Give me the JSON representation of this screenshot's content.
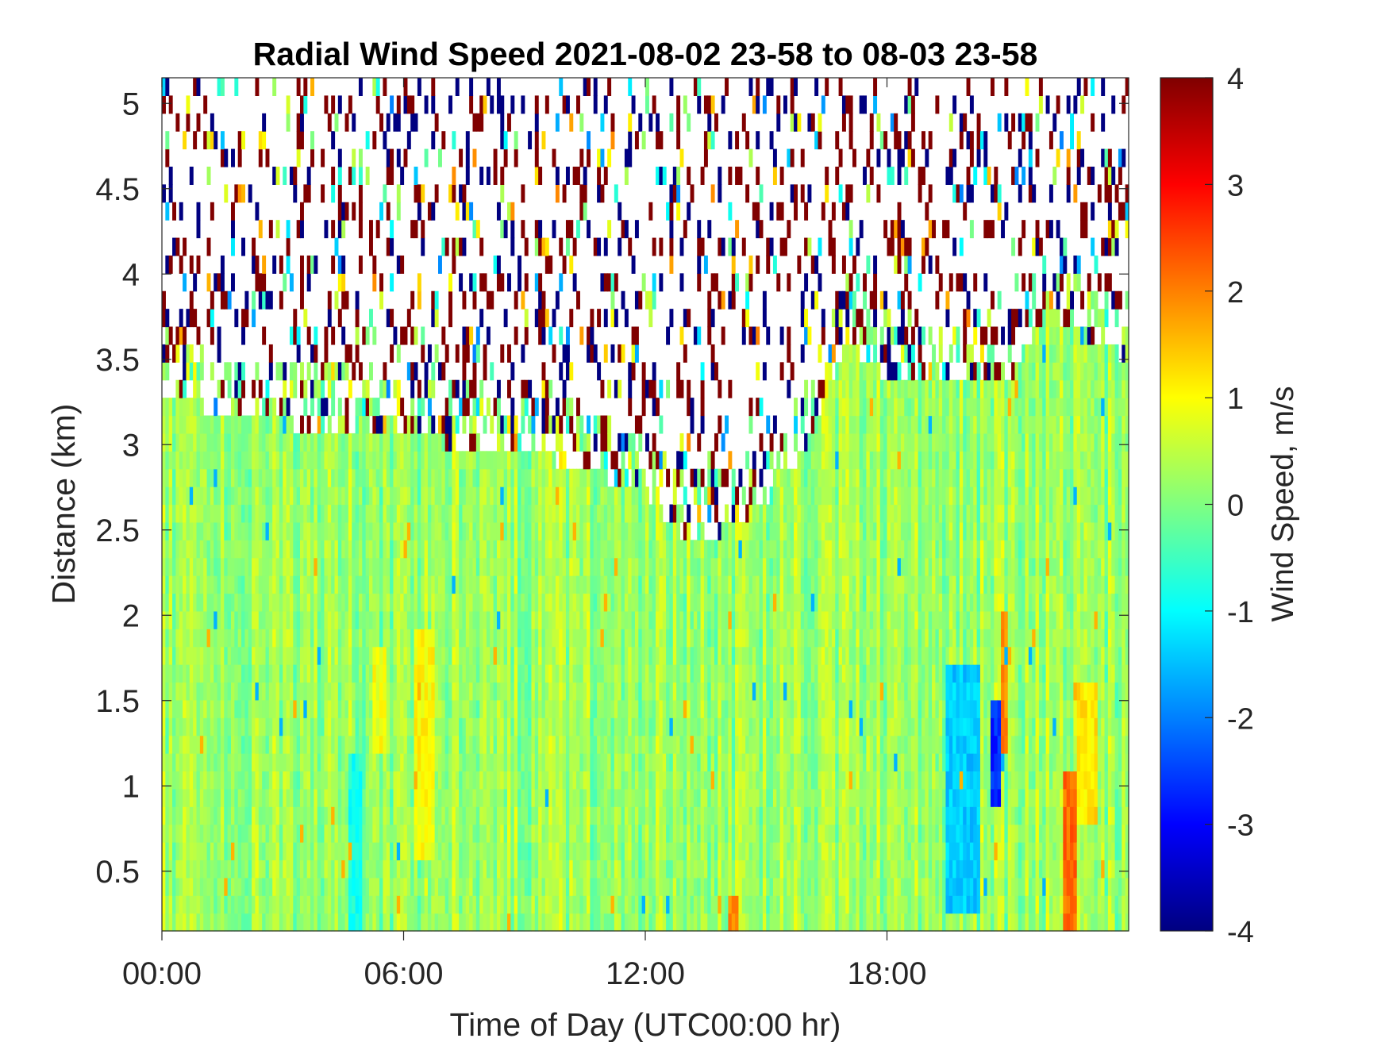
{
  "figure": {
    "background": "#ffffff",
    "axis_color": "#262626"
  },
  "chart_data": {
    "type": "heatmap",
    "title": "Radial Wind Speed 2021-08-02 23-58 to 08-03 23-58",
    "xlabel": "Time of Day (UTC00:00 hr)",
    "ylabel": "Distance (km)",
    "x_ticks": [
      {
        "value": 0,
        "label": "00:00"
      },
      {
        "value": 6,
        "label": "06:00"
      },
      {
        "value": 12,
        "label": "12:00"
      },
      {
        "value": 18,
        "label": "18:00"
      }
    ],
    "y_ticks": [
      {
        "value": 0.5,
        "label": "0.5"
      },
      {
        "value": 1,
        "label": "1"
      },
      {
        "value": 1.5,
        "label": "1.5"
      },
      {
        "value": 2,
        "label": "2"
      },
      {
        "value": 2.5,
        "label": "2.5"
      },
      {
        "value": 3,
        "label": "3"
      },
      {
        "value": 3.5,
        "label": "3.5"
      },
      {
        "value": 4,
        "label": "4"
      },
      {
        "value": 4.5,
        "label": "4.5"
      },
      {
        "value": 5,
        "label": "5"
      }
    ],
    "xlim": [
      0,
      24
    ],
    "ylim": [
      0.15,
      5.15
    ],
    "colorbar": {
      "label": "Wind Speed, m/s",
      "colormap": "jet",
      "clim": [
        -4,
        4
      ],
      "ticks": [
        {
          "value": 4,
          "label": "4"
        },
        {
          "value": 3,
          "label": "3"
        },
        {
          "value": 2,
          "label": "2"
        },
        {
          "value": 1,
          "label": "1"
        },
        {
          "value": 0,
          "label": "0"
        },
        {
          "value": -1,
          "label": "-1"
        },
        {
          "value": -2,
          "label": "-2"
        },
        {
          "value": -3,
          "label": "-3"
        },
        {
          "value": -4,
          "label": "-4"
        }
      ]
    },
    "grid": false,
    "field_summary": {
      "typical_value_range_low_altitude": [
        -1,
        1
      ],
      "dominant_value": 0.2,
      "noise_values": [
        -4,
        4
      ],
      "signal_top_km": [
        {
          "time": 0,
          "km": 3.3
        },
        {
          "time": 2,
          "km": 3.15
        },
        {
          "time": 6,
          "km": 3.05
        },
        {
          "time": 10,
          "km": 2.9
        },
        {
          "time": 12,
          "km": 2.7
        },
        {
          "time": 13,
          "km": 2.45
        },
        {
          "time": 14,
          "km": 2.5
        },
        {
          "time": 15,
          "km": 2.65
        },
        {
          "time": 16,
          "km": 3.0
        },
        {
          "time": 17,
          "km": 3.6
        },
        {
          "time": 18,
          "km": 3.4
        },
        {
          "time": 19,
          "km": 3.35
        },
        {
          "time": 21,
          "km": 3.35
        },
        {
          "time": 22,
          "km": 3.8
        },
        {
          "time": 23,
          "km": 3.6
        },
        {
          "time": 24,
          "km": 3.5
        }
      ],
      "features": [
        {
          "time_start": 4.6,
          "time_end": 5.0,
          "km_start": 0.15,
          "km_end": 1.2,
          "value": -0.8
        },
        {
          "time_start": 5.2,
          "time_end": 5.6,
          "km_start": 1.2,
          "km_end": 1.8,
          "value": 0.9
        },
        {
          "time_start": 6.3,
          "time_end": 6.8,
          "km_start": 0.6,
          "km_end": 1.9,
          "value": 1.0
        },
        {
          "time_start": 14.1,
          "time_end": 14.3,
          "km_start": 0.15,
          "km_end": 0.35,
          "value": 2.0
        },
        {
          "time_start": 19.5,
          "time_end": 20.3,
          "km_start": 0.3,
          "km_end": 1.7,
          "value": -1.4
        },
        {
          "time_start": 20.6,
          "time_end": 20.8,
          "km_start": 0.9,
          "km_end": 1.5,
          "value": -2.7
        },
        {
          "time_start": 20.8,
          "time_end": 21.0,
          "km_start": 1.2,
          "km_end": 2.0,
          "value": 2.0
        },
        {
          "time_start": 22.4,
          "time_end": 22.7,
          "km_start": 0.15,
          "km_end": 1.1,
          "value": 2.2
        },
        {
          "time_start": 22.7,
          "time_end": 23.2,
          "km_start": 0.8,
          "km_end": 1.6,
          "value": 1.2
        }
      ]
    }
  }
}
